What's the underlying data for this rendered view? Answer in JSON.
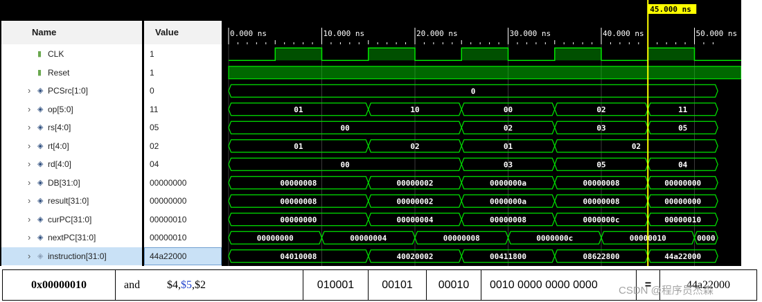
{
  "cursor": {
    "time": 45,
    "label": "45.000 ns"
  },
  "timeline": {
    "start": 0,
    "end": 52.5,
    "ticks": [
      {
        "t": 0,
        "label": "0.000 ns"
      },
      {
        "t": 10,
        "label": "10.000 ns"
      },
      {
        "t": 20,
        "label": "20.000 ns"
      },
      {
        "t": 30,
        "label": "30.000 ns"
      },
      {
        "t": 40,
        "label": "40.000 ns"
      },
      {
        "t": 50,
        "label": "50.000 ns"
      }
    ]
  },
  "columns": {
    "name": "Name",
    "value": "Value"
  },
  "signals": [
    {
      "name": "CLK",
      "value": "1",
      "type": "clock",
      "icon": "bit-signal-icon",
      "period": 10,
      "high_start": 5
    },
    {
      "name": "Reset",
      "value": "1",
      "type": "bit",
      "icon": "bit-signal-icon",
      "level": 1
    },
    {
      "name": "PCSrc[1:0]",
      "value": "0",
      "type": "bus",
      "icon": "bus-signal-icon",
      "segments": [
        {
          "from": 0,
          "to": 52.5,
          "label": "0"
        }
      ]
    },
    {
      "name": "op[5:0]",
      "value": "11",
      "type": "bus",
      "icon": "bus-signal-icon",
      "segments": [
        {
          "from": 0,
          "to": 15,
          "label": "01"
        },
        {
          "from": 15,
          "to": 25,
          "label": "10"
        },
        {
          "from": 25,
          "to": 35,
          "label": "00"
        },
        {
          "from": 35,
          "to": 45,
          "label": "02"
        },
        {
          "from": 45,
          "to": 52.5,
          "label": "11"
        }
      ]
    },
    {
      "name": "rs[4:0]",
      "value": "05",
      "type": "bus",
      "icon": "bus-signal-icon",
      "segments": [
        {
          "from": 0,
          "to": 25,
          "label": "00"
        },
        {
          "from": 25,
          "to": 35,
          "label": "02"
        },
        {
          "from": 35,
          "to": 45,
          "label": "03"
        },
        {
          "from": 45,
          "to": 52.5,
          "label": "05"
        }
      ]
    },
    {
      "name": "rt[4:0]",
      "value": "02",
      "type": "bus",
      "icon": "bus-signal-icon",
      "segments": [
        {
          "from": 0,
          "to": 15,
          "label": "01"
        },
        {
          "from": 15,
          "to": 25,
          "label": "02"
        },
        {
          "from": 25,
          "to": 35,
          "label": "01"
        },
        {
          "from": 35,
          "to": 52.5,
          "label": "02"
        }
      ]
    },
    {
      "name": "rd[4:0]",
      "value": "04",
      "type": "bus",
      "icon": "bus-signal-icon",
      "segments": [
        {
          "from": 0,
          "to": 25,
          "label": "00"
        },
        {
          "from": 25,
          "to": 35,
          "label": "03"
        },
        {
          "from": 35,
          "to": 45,
          "label": "05"
        },
        {
          "from": 45,
          "to": 52.5,
          "label": "04"
        }
      ]
    },
    {
      "name": "DB[31:0]",
      "value": "00000000",
      "type": "bus",
      "icon": "bus-signal-icon",
      "segments": [
        {
          "from": 0,
          "to": 15,
          "label": "00000008"
        },
        {
          "from": 15,
          "to": 25,
          "label": "00000002"
        },
        {
          "from": 25,
          "to": 35,
          "label": "0000000a"
        },
        {
          "from": 35,
          "to": 45,
          "label": "00000008"
        },
        {
          "from": 45,
          "to": 52.5,
          "label": "00000000"
        }
      ]
    },
    {
      "name": "result[31:0]",
      "value": "00000000",
      "type": "bus",
      "icon": "bus-signal-icon",
      "segments": [
        {
          "from": 0,
          "to": 15,
          "label": "00000008"
        },
        {
          "from": 15,
          "to": 25,
          "label": "00000002"
        },
        {
          "from": 25,
          "to": 35,
          "label": "0000000a"
        },
        {
          "from": 35,
          "to": 45,
          "label": "00000008"
        },
        {
          "from": 45,
          "to": 52.5,
          "label": "00000000"
        }
      ]
    },
    {
      "name": "curPC[31:0]",
      "value": "00000010",
      "type": "bus",
      "icon": "bus-signal-icon",
      "segments": [
        {
          "from": 0,
          "to": 15,
          "label": "00000000"
        },
        {
          "from": 15,
          "to": 25,
          "label": "00000004"
        },
        {
          "from": 25,
          "to": 35,
          "label": "00000008"
        },
        {
          "from": 35,
          "to": 45,
          "label": "0000000c"
        },
        {
          "from": 45,
          "to": 52.5,
          "label": "00000010"
        }
      ]
    },
    {
      "name": "nextPC[31:0]",
      "value": "00000010",
      "type": "bus",
      "icon": "bus-signal-icon",
      "segments": [
        {
          "from": 0,
          "to": 10,
          "label": "00000000"
        },
        {
          "from": 10,
          "to": 20,
          "label": "00000004"
        },
        {
          "from": 20,
          "to": 30,
          "label": "00000008"
        },
        {
          "from": 30,
          "to": 40,
          "label": "0000000c"
        },
        {
          "from": 40,
          "to": 50,
          "label": "00000010"
        },
        {
          "from": 50,
          "to": 52.5,
          "label": "0000"
        }
      ]
    },
    {
      "name": "instruction[31:0]",
      "value": "44a22000",
      "type": "bus",
      "icon": "memory-signal-icon",
      "selected": true,
      "segments": [
        {
          "from": 0,
          "to": 15,
          "label": "04010008"
        },
        {
          "from": 15,
          "to": 25,
          "label": "40020002"
        },
        {
          "from": 25,
          "to": 35,
          "label": "00411800"
        },
        {
          "from": 35,
          "to": 45,
          "label": "08622800"
        },
        {
          "from": 45,
          "to": 52.5,
          "label": "44a22000"
        }
      ]
    }
  ],
  "colors": {
    "wave": "#00e600",
    "cursor": "#ffff00",
    "background": "#000000",
    "grid": "#3a3a3a",
    "text": "#ffffff"
  },
  "instruction_row": {
    "address": "0x00000010",
    "mnemonic": "and",
    "operand_a": "$4,",
    "operand_b": "$5",
    "operand_c": ",$2",
    "op_bits": "010001",
    "rs_bits": "00101",
    "rt_bits": "00010",
    "rest_bits": "0010 0000 0000 0000",
    "equals": "=",
    "hex": "44a22000"
  },
  "watermark": "CSDN @程序员杰森"
}
